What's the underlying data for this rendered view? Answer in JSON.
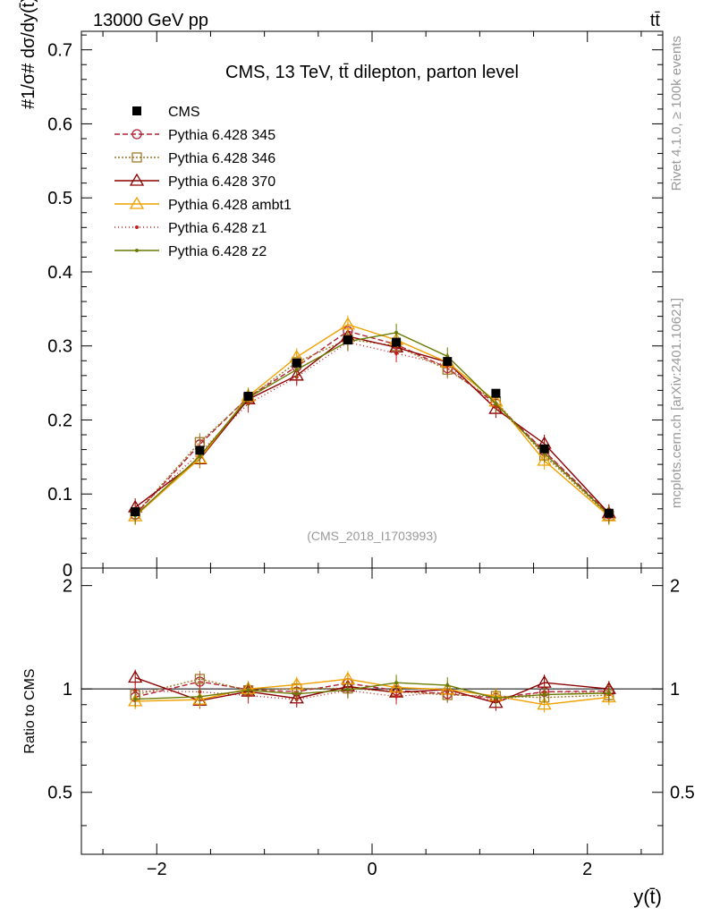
{
  "header": {
    "beam_label": "13000 GeV pp",
    "process_label": "tt̄"
  },
  "side": {
    "rivet_label": "Rivet 4.1.0, ≥ 100k events",
    "mcplots_label": "mcplots.cern.ch [arXiv:2401.10621]"
  },
  "chart_data": {
    "type": "line",
    "title": "CMS, 13 TeV, tt̄ dilepton, parton level",
    "analysis_id": "(CMS_2018_I1703993)",
    "xlabel": "y(t̄)",
    "ylabel": "#1/σ# dσ/dy(t̄)",
    "ratio_ylabel": "Ratio to CMS",
    "xlim": [
      -2.7,
      2.7
    ],
    "ylim": [
      0,
      0.725
    ],
    "ratio_ylim": [
      0.33,
      2.25
    ],
    "x_ticks": [
      -2,
      0,
      2
    ],
    "x_tick_labels": [
      "−2",
      "0",
      "2"
    ],
    "y_ticks": [
      0.1,
      0.2,
      0.3,
      0.4,
      0.5,
      0.6,
      0.7
    ],
    "y_tick_labels": [
      "0.1",
      "0.2",
      "0.3",
      "0.4",
      "0.5",
      "0.6",
      "0.7"
    ],
    "y_zero_label": "0",
    "ratio_ticks": [
      0.5,
      1,
      2
    ],
    "ratio_tick_labels": [
      "0.5",
      "1",
      "2"
    ],
    "x": [
      -2.2,
      -1.6,
      -1.15,
      -0.7,
      -0.225,
      0.225,
      0.7,
      1.15,
      1.6,
      2.2
    ],
    "data": {
      "name": "CMS",
      "color": "#000000",
      "values": [
        0.076,
        0.159,
        0.232,
        0.277,
        0.308,
        0.305,
        0.279,
        0.236,
        0.161,
        0.074
      ]
    },
    "series": [
      {
        "name": "Pythia 6.428 345",
        "color": "#b22234",
        "dash": "6,3",
        "marker": "circle",
        "values": [
          0.072,
          0.167,
          0.231,
          0.272,
          0.32,
          0.302,
          0.27,
          0.222,
          0.158,
          0.073
        ]
      },
      {
        "name": "Pythia 6.428 346",
        "color": "#a07828",
        "dash": "2,2",
        "marker": "square",
        "values": [
          0.073,
          0.17,
          0.23,
          0.278,
          0.309,
          0.3,
          0.268,
          0.225,
          0.152,
          0.071
        ]
      },
      {
        "name": "Pythia 6.428 370",
        "color": "#8b0000",
        "dash": "",
        "marker": "triangle",
        "values": [
          0.082,
          0.147,
          0.228,
          0.26,
          0.313,
          0.298,
          0.278,
          0.215,
          0.168,
          0.074
        ]
      },
      {
        "name": "Pythia 6.428 ambt1",
        "color": "#f0a000",
        "dash": "",
        "marker": "triangle",
        "values": [
          0.07,
          0.148,
          0.232,
          0.285,
          0.329,
          0.308,
          0.278,
          0.225,
          0.145,
          0.07
        ]
      },
      {
        "name": "Pythia 6.428 z1",
        "color": "#c81e1e",
        "dash": "1,3",
        "marker": "dot",
        "values": [
          0.075,
          0.156,
          0.222,
          0.258,
          0.305,
          0.29,
          0.274,
          0.218,
          0.158,
          0.072
        ]
      },
      {
        "name": "Pythia 6.428 z2",
        "color": "#6b7a00",
        "dash": "",
        "marker": "dot",
        "values": [
          0.071,
          0.151,
          0.23,
          0.268,
          0.306,
          0.318,
          0.286,
          0.222,
          0.155,
          0.072
        ]
      }
    ]
  }
}
